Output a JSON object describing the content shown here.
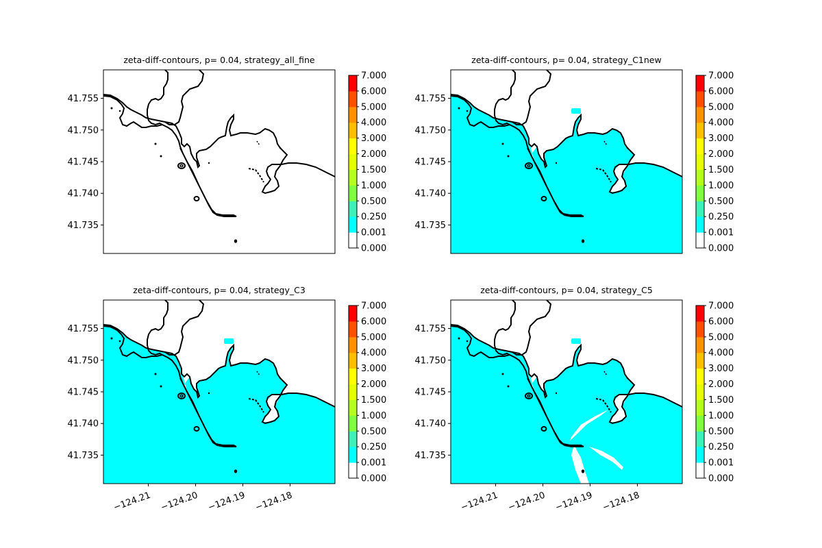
{
  "figure": {
    "background": "#ffffff",
    "coast_color": "#000000"
  },
  "chart_data": [
    {
      "type": "heatmap",
      "title": "zeta-diff-contours, p= 0.04, strategy_all_fine",
      "xlim": [
        -124.2195,
        -124.1705
      ],
      "ylim": [
        41.7305,
        41.7595
      ],
      "yticks": [
        "41.735",
        "41.740",
        "41.745",
        "41.750",
        "41.755"
      ],
      "ytick_values": [
        41.735,
        41.74,
        41.745,
        41.75,
        41.755
      ],
      "xticks": [],
      "fill": "none",
      "colorbar_ticks": [
        "0.000",
        "0.001",
        "0.250",
        "0.500",
        "1.000",
        "1.500",
        "2.000",
        "3.000",
        "4.000",
        "5.000",
        "6.000",
        "7.000"
      ]
    },
    {
      "type": "heatmap",
      "title": "zeta-diff-contours, p= 0.04, strategy_C1new",
      "xlim": [
        -124.2195,
        -124.1705
      ],
      "ylim": [
        41.7305,
        41.7595
      ],
      "yticks": [
        "41.735",
        "41.740",
        "41.745",
        "41.750",
        "41.755"
      ],
      "ytick_values": [
        41.735,
        41.74,
        41.745,
        41.75,
        41.755
      ],
      "xticks": [],
      "fill": "water",
      "fill_level": "0.001–0.250",
      "colorbar_ticks": [
        "0.000",
        "0.001",
        "0.250",
        "0.500",
        "1.000",
        "1.500",
        "2.000",
        "3.000",
        "4.000",
        "5.000",
        "6.000",
        "7.000"
      ]
    },
    {
      "type": "heatmap",
      "title": "zeta-diff-contours, p= 0.04, strategy_C3",
      "xlim": [
        -124.2195,
        -124.1705
      ],
      "ylim": [
        41.7305,
        41.7595
      ],
      "yticks": [
        "41.735",
        "41.740",
        "41.745",
        "41.750",
        "41.755"
      ],
      "ytick_values": [
        41.735,
        41.74,
        41.745,
        41.75,
        41.755
      ],
      "xticks": [
        "−124.21",
        "−124.20",
        "−124.19",
        "−124.18"
      ],
      "xtick_values": [
        -124.21,
        -124.2,
        -124.19,
        -124.18
      ],
      "fill": "water",
      "fill_level": "0.001–0.250",
      "colorbar_ticks": [
        "0.000",
        "0.001",
        "0.250",
        "0.500",
        "1.000",
        "1.500",
        "2.000",
        "3.000",
        "4.000",
        "5.000",
        "6.000",
        "7.000"
      ]
    },
    {
      "type": "heatmap",
      "title": "zeta-diff-contours, p= 0.04, strategy_C5",
      "xlim": [
        -124.2195,
        -124.1705
      ],
      "ylim": [
        41.7305,
        41.7595
      ],
      "yticks": [
        "41.735",
        "41.740",
        "41.745",
        "41.750",
        "41.755"
      ],
      "ytick_values": [
        41.735,
        41.74,
        41.745,
        41.75,
        41.755
      ],
      "xticks": [
        "−124.21",
        "−124.20",
        "−124.19",
        "−124.18"
      ],
      "xtick_values": [
        -124.21,
        -124.2,
        -124.19,
        -124.18
      ],
      "fill": "water-with-gaps",
      "fill_level": "0.001–0.250",
      "colorbar_ticks": [
        "0.000",
        "0.001",
        "0.250",
        "0.500",
        "1.000",
        "1.500",
        "2.000",
        "3.000",
        "4.000",
        "5.000",
        "6.000",
        "7.000"
      ]
    }
  ],
  "colorbar": {
    "levels": [
      0.0,
      0.001,
      0.25,
      0.5,
      1.0,
      1.5,
      2.0,
      3.0,
      4.0,
      5.0,
      6.0,
      7.0
    ],
    "colors": [
      "#ffffff",
      "#00ffff",
      "#3ff0b8",
      "#7fff3f",
      "#b4ff1e",
      "#e6ff00",
      "#ffff00",
      "#ffbf00",
      "#ff9000",
      "#ff5000",
      "#ff0000"
    ]
  }
}
